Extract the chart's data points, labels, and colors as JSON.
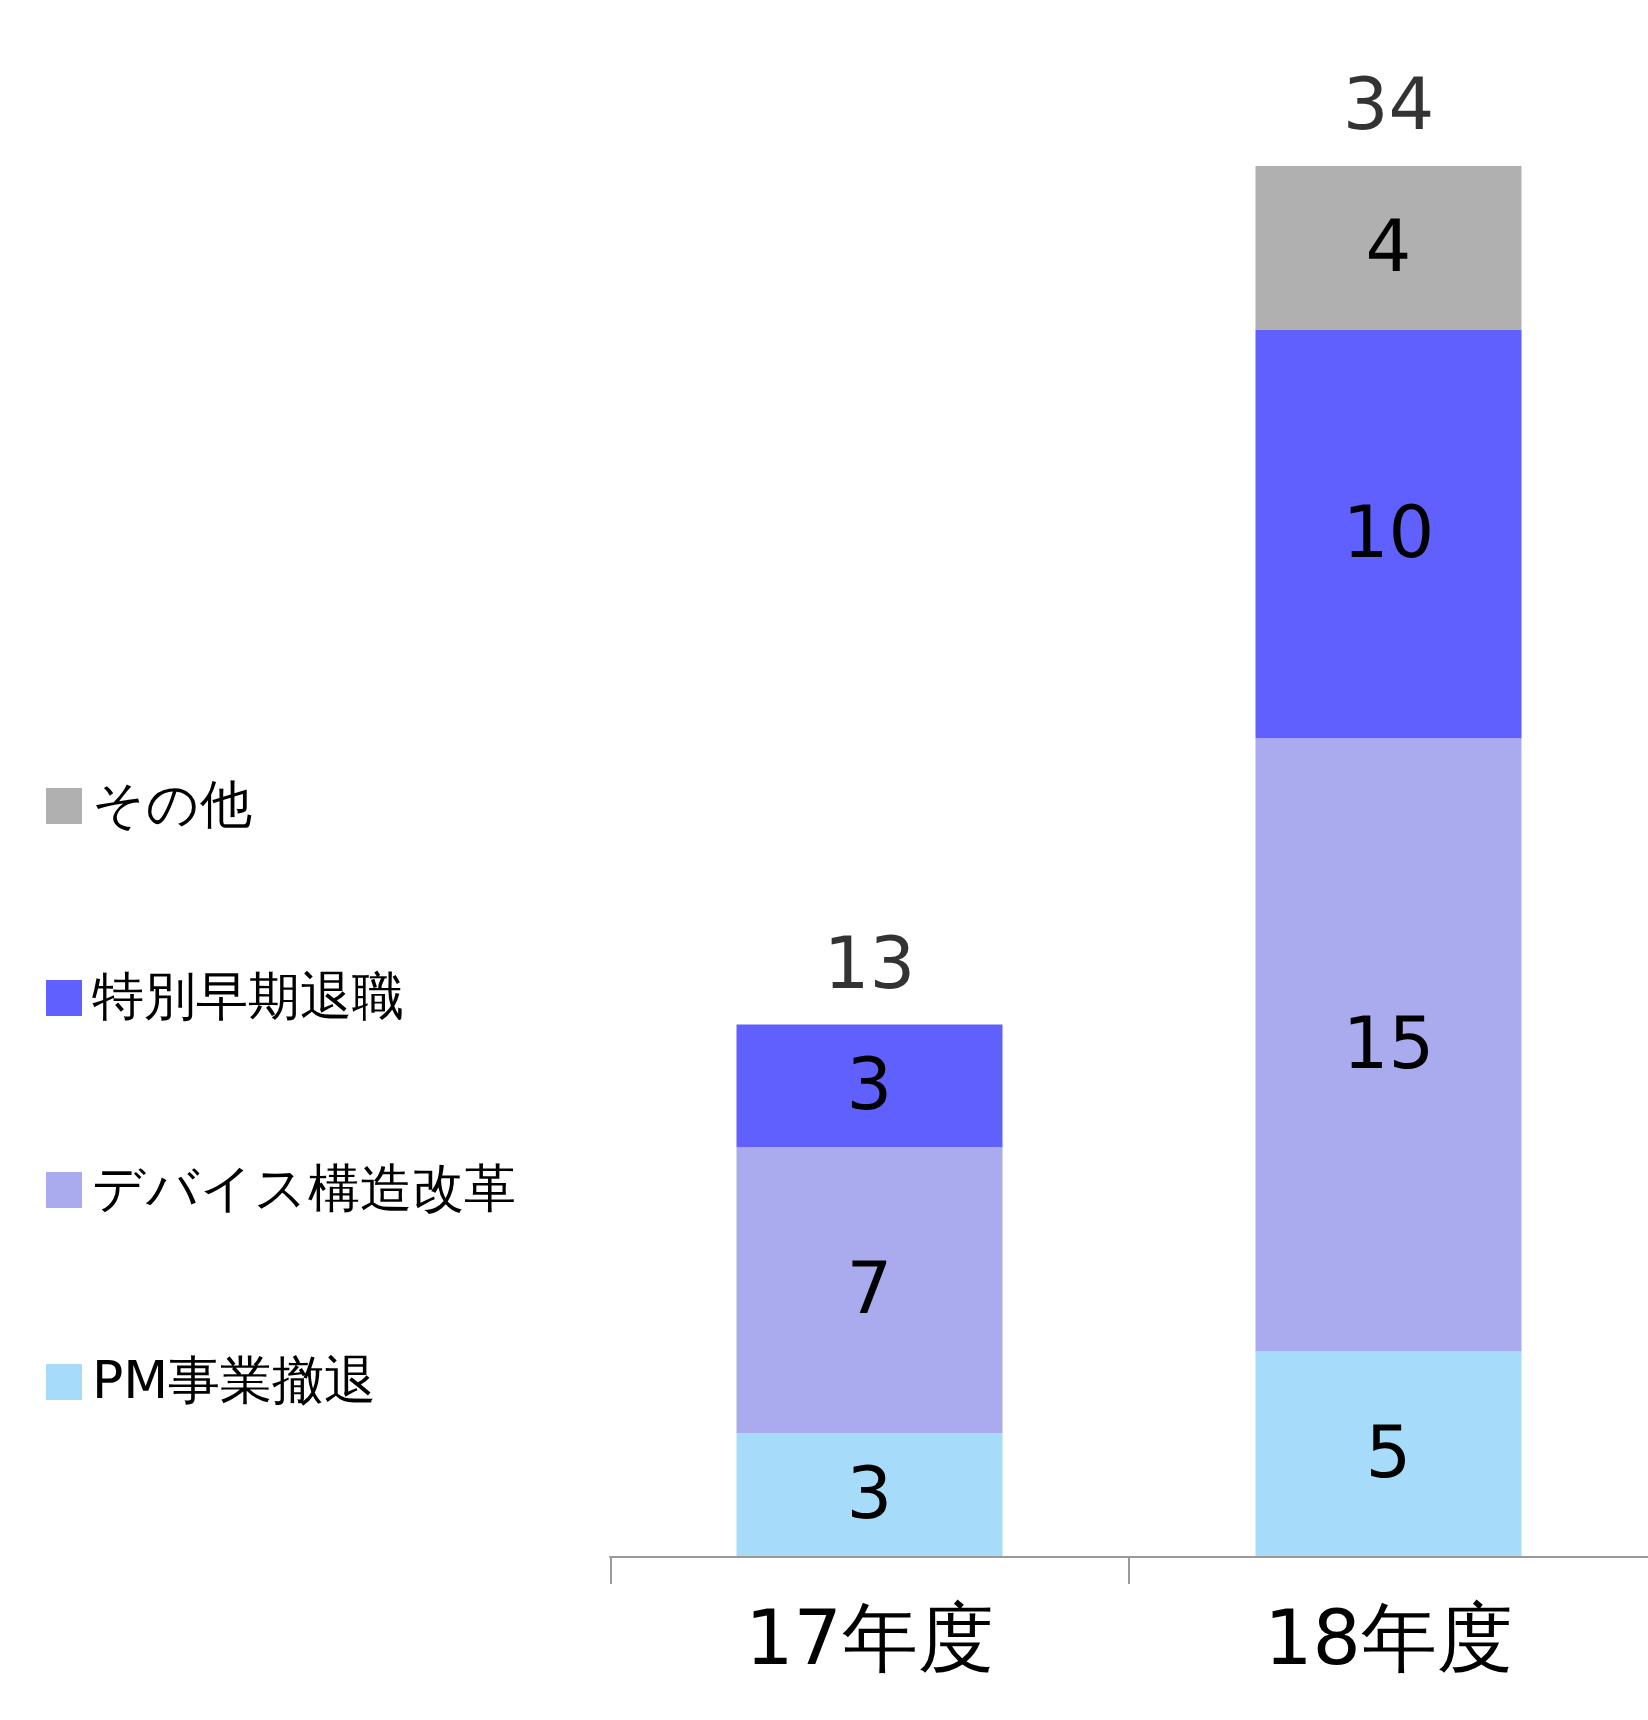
{
  "chart_data": {
    "type": "bar",
    "stacked": true,
    "categories": [
      "17年度",
      "18年度"
    ],
    "series": [
      {
        "name": "PM事業撤退",
        "color": "#a6dcfa",
        "values": [
          3,
          5
        ]
      },
      {
        "name": "デバイス構造改革",
        "color": "#aaaaee",
        "values": [
          7,
          15
        ]
      },
      {
        "name": "特別早期退職",
        "color": "#6060ff",
        "values": [
          3,
          10
        ]
      },
      {
        "name": "その他",
        "color": "#b0b0b0",
        "values": [
          null,
          4
        ]
      }
    ],
    "data_labels": true,
    "totals": [
      "13",
      "34"
    ],
    "legend": "left"
  }
}
